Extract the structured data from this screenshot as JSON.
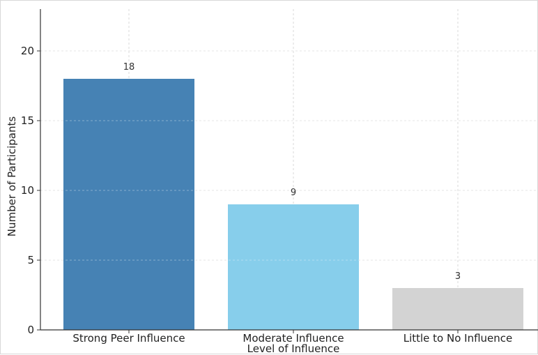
{
  "chart_data": {
    "type": "bar",
    "title": "",
    "xlabel": "Level of Influence",
    "ylabel": "Number of Participants",
    "categories": [
      "Strong Peer Influence",
      "Moderate Influence",
      "Little to No Influence"
    ],
    "values": [
      18,
      9,
      3
    ],
    "data_labels": [
      "18",
      "9",
      "3"
    ],
    "colors": [
      "#4682b4",
      "#87ceeb",
      "#d3d3d3"
    ],
    "ylim": [
      0,
      23
    ],
    "yticks": [
      0,
      5,
      10,
      15,
      20
    ],
    "ytick_labels": [
      "0",
      "5",
      "10",
      "15",
      "20"
    ],
    "grid": true,
    "legend": "none"
  }
}
